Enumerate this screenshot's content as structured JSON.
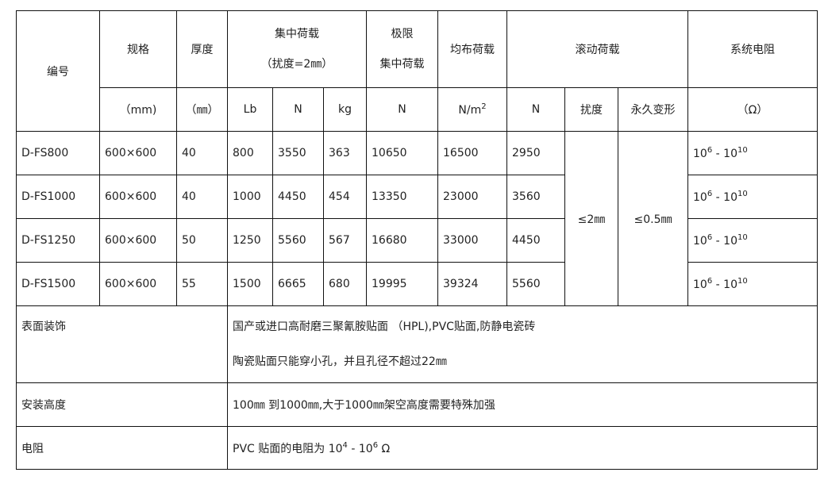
{
  "header": {
    "code": "编号",
    "spec": "规格",
    "thickness": "厚度",
    "conc_load_1": "集中荷载",
    "conc_load_2": "（扰度=2㎜）",
    "ult_load_1": "极限",
    "ult_load_2": "集中荷载",
    "uniform_load": "均布荷载",
    "rolling_load": "滚动荷载",
    "resistance": "系统电阻",
    "spec_unit": "（mm)",
    "thickness_unit": "（㎜）",
    "lb": "Lb",
    "n1": "N",
    "kg": "kg",
    "n2": "N",
    "uniform_unit_base": "N/m",
    "uniform_unit_exp": "2",
    "n3": "N",
    "deflection": "扰度",
    "perm_deform": "永久变形",
    "ohm": "（Ω）"
  },
  "rows": [
    {
      "code": "D-FS800",
      "spec": "600×600",
      "thickness": "40",
      "lb": "800",
      "n": "3550",
      "kg": "363",
      "ult": "10650",
      "uniform": "16500",
      "rolling": "2950"
    },
    {
      "code": "D-FS1000",
      "spec": "600×600",
      "thickness": "40",
      "lb": "1000",
      "n": "4450",
      "kg": "454",
      "ult": "13350",
      "uniform": "23000",
      "rolling": "3560"
    },
    {
      "code": "D-FS1250",
      "spec": "600×600",
      "thickness": "50",
      "lb": "1250",
      "n": "5560",
      "kg": "567",
      "ult": "16680",
      "uniform": "33000",
      "rolling": "4450"
    },
    {
      "code": "D-FS1500",
      "spec": "600×600",
      "thickness": "55",
      "lb": "1500",
      "n": "6665",
      "kg": "680",
      "ult": "19995",
      "uniform": "39324",
      "rolling": "5560"
    }
  ],
  "rolling_deflection": "≤2㎜",
  "rolling_perm": "≤0.5㎜",
  "resistance_range": {
    "base1": "10",
    "exp1": "6",
    "sep": " - ",
    "base2": "10",
    "exp2": "10"
  },
  "surface": {
    "label": "表面装饰",
    "line1": "国产或进口高耐磨三聚氰胺贴面 （HPL),PVC贴面,防静电瓷砖",
    "line2": "陶瓷贴面只能穿小孔，并且孔径不超过22㎜"
  },
  "install": {
    "label": "安装高度",
    "text": "100㎜ 到1000㎜,大于1000㎜架空高度需要特殊加强"
  },
  "resist": {
    "label": "电阻",
    "prefix": "PVC 贴面的电阻为 ",
    "base1": "10",
    "exp1": "4",
    "sep": " - ",
    "base2": "10",
    "exp2": "6",
    "suffix": " Ω"
  }
}
